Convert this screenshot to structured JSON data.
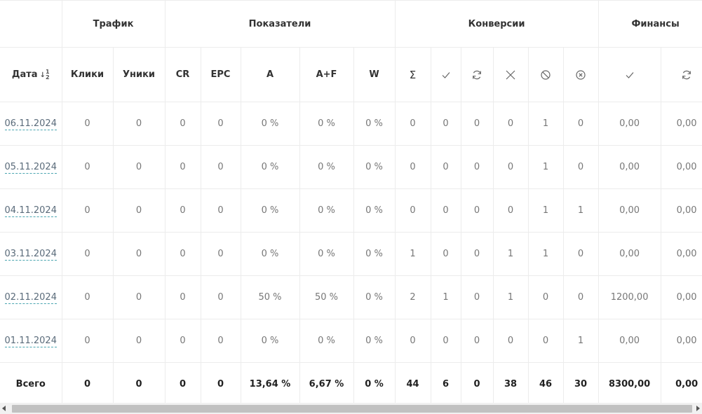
{
  "groups": {
    "traffic": "Трафик",
    "indicators": "Показатели",
    "conversions": "Конверсии",
    "finance": "Финансы"
  },
  "headers": {
    "date": "Дата",
    "date_sort_icon": "sort-ascending-icon",
    "clicks": "Клики",
    "uniques": "Уники",
    "cr": "CR",
    "epc": "EPC",
    "a": "A",
    "af": "A+F",
    "w": "W",
    "sum": "Σ",
    "conv_icons": [
      "check-icon",
      "refresh-icon",
      "x-icon",
      "ban-icon",
      "circle-x-icon"
    ],
    "fin_icons": [
      "check-icon",
      "refresh-icon"
    ]
  },
  "rows": [
    {
      "date": "06.11.2024",
      "clicks": "0",
      "uniques": "0",
      "cr": "0",
      "epc": "0",
      "a": "0 %",
      "af": "0 %",
      "w": "0 %",
      "sum": "0",
      "approved": "0",
      "hold": "0",
      "rejected": "0",
      "banned": "1",
      "cancelled": "0",
      "fin_approved": "0,00",
      "fin_hold": "0,00"
    },
    {
      "date": "05.11.2024",
      "clicks": "0",
      "uniques": "0",
      "cr": "0",
      "epc": "0",
      "a": "0 %",
      "af": "0 %",
      "w": "0 %",
      "sum": "0",
      "approved": "0",
      "hold": "0",
      "rejected": "0",
      "banned": "1",
      "cancelled": "0",
      "fin_approved": "0,00",
      "fin_hold": "0,00"
    },
    {
      "date": "04.11.2024",
      "clicks": "0",
      "uniques": "0",
      "cr": "0",
      "epc": "0",
      "a": "0 %",
      "af": "0 %",
      "w": "0 %",
      "sum": "0",
      "approved": "0",
      "hold": "0",
      "rejected": "0",
      "banned": "1",
      "cancelled": "1",
      "fin_approved": "0,00",
      "fin_hold": "0,00"
    },
    {
      "date": "03.11.2024",
      "clicks": "0",
      "uniques": "0",
      "cr": "0",
      "epc": "0",
      "a": "0 %",
      "af": "0 %",
      "w": "0 %",
      "sum": "1",
      "approved": "0",
      "hold": "0",
      "rejected": "1",
      "banned": "1",
      "cancelled": "0",
      "fin_approved": "0,00",
      "fin_hold": "0,00"
    },
    {
      "date": "02.11.2024",
      "clicks": "0",
      "uniques": "0",
      "cr": "0",
      "epc": "0",
      "a": "50 %",
      "af": "50 %",
      "w": "0 %",
      "sum": "2",
      "approved": "1",
      "hold": "0",
      "rejected": "1",
      "banned": "0",
      "cancelled": "0",
      "fin_approved": "1200,00",
      "fin_hold": "0,00"
    },
    {
      "date": "01.11.2024",
      "clicks": "0",
      "uniques": "0",
      "cr": "0",
      "epc": "0",
      "a": "0 %",
      "af": "0 %",
      "w": "0 %",
      "sum": "0",
      "approved": "0",
      "hold": "0",
      "rejected": "0",
      "banned": "0",
      "cancelled": "1",
      "fin_approved": "0,00",
      "fin_hold": "0,00"
    }
  ],
  "totals": {
    "label": "Всего",
    "clicks": "0",
    "uniques": "0",
    "cr": "0",
    "epc": "0",
    "a": "13,64 %",
    "af": "6,67 %",
    "w": "0 %",
    "sum": "44",
    "approved": "6",
    "hold": "0",
    "rejected": "38",
    "banned": "46",
    "cancelled": "30",
    "fin_approved": "8300,00",
    "fin_hold": "0,00"
  }
}
